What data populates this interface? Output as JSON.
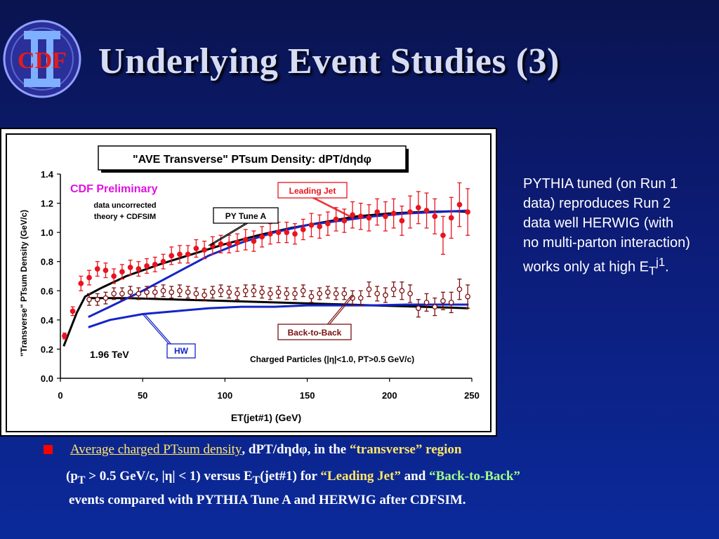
{
  "slide": {
    "title": "Underlying Event Studies (3)",
    "logo_text": "CDF",
    "side_note": {
      "text_main": "PYTHIA tuned (on Run 1 data) reproduces Run 2 data well HERWIG (with no multi-parton interaction) works only at high E",
      "sub": "T",
      "sup": "j1",
      "end": "."
    },
    "bullet": {
      "l1_underlined": "Average charged PTsum density",
      "l1_mid": ", dPT/dηdφ, in the ",
      "l1_yellow": "“transverse” region",
      "l2_a": "(p",
      "l2_sub": "T",
      "l2_b": " > 0.5 GeV/c, |η| < 1) versus E",
      "l2_sub2": "T",
      "l2_c": "(jet#1) for ",
      "l2_yellow": "“Leading Jet”",
      "l2_and": " and  ",
      "l2_green": "“Back-to-Back”",
      "l3": "events compared with PYTHIA Tune A and HERWIG after CDFSIM."
    },
    "colors": {
      "accent_red": "#ff0000",
      "yellow_text": "#ffe66a",
      "green_text": "#a4ff8a"
    }
  },
  "chart_data": {
    "type": "scatter",
    "title": "\"AVE Transverse\" PTsum Density: dPT/dηdφ",
    "xlabel": "ET(jet#1)   (GeV)",
    "ylabel": "\"Transverse\" PTsum Density (GeV/c)",
    "xlim": [
      0,
      250
    ],
    "ylim": [
      0,
      1.4
    ],
    "xticks": [
      "0",
      "50",
      "100",
      "150",
      "200",
      "250"
    ],
    "yticks": [
      "0.0",
      "0.2",
      "0.4",
      "0.6",
      "0.8",
      "1.0",
      "1.2",
      "1.4"
    ],
    "grid": false,
    "annotations": {
      "preliminary": "CDF Preliminary",
      "note1": "data uncorrected",
      "note2": "theory + CDFSIM",
      "energy": "1.96 TeV",
      "cuts": "Charged Particles (|η|<1.0, PT>0.5 GeV/c)",
      "label_leading": "Leading Jet",
      "label_pytune": "PY Tune A",
      "label_b2b": "Back-to-Back",
      "label_hw": "HW"
    },
    "series": [
      {
        "name": "Leading Jet",
        "marker": "filled-circle",
        "color": "#e8141e",
        "x": [
          2.5,
          7.5,
          12.5,
          17.5,
          22.5,
          27.5,
          32.5,
          37.5,
          42.5,
          47.5,
          52.5,
          57.5,
          62.5,
          67.5,
          72.5,
          77.5,
          82.5,
          87.5,
          92.5,
          97.5,
          102.5,
          107.5,
          112.5,
          117.5,
          122.5,
          127.5,
          132.5,
          137.5,
          142.5,
          147.5,
          152.5,
          157.5,
          162.5,
          167.5,
          172.5,
          177.5,
          182.5,
          187.5,
          192.5,
          197.5,
          202.5,
          207.5,
          212.5,
          217.5,
          222.5,
          227.5,
          232.5,
          237.5,
          242.5,
          247.5
        ],
        "y": [
          0.29,
          0.46,
          0.65,
          0.69,
          0.75,
          0.74,
          0.7,
          0.73,
          0.76,
          0.75,
          0.77,
          0.78,
          0.8,
          0.84,
          0.85,
          0.85,
          0.89,
          0.88,
          0.91,
          0.92,
          0.92,
          0.93,
          0.95,
          0.94,
          0.97,
          0.99,
          1.0,
          1.0,
          0.99,
          1.02,
          1.05,
          1.04,
          1.06,
          1.09,
          1.08,
          1.12,
          1.11,
          1.1,
          1.14,
          1.11,
          1.13,
          1.08,
          1.14,
          1.17,
          1.15,
          1.11,
          0.98,
          1.1,
          1.19,
          1.14
        ],
        "err": [
          0.02,
          0.03,
          0.05,
          0.05,
          0.05,
          0.05,
          0.05,
          0.05,
          0.05,
          0.05,
          0.05,
          0.05,
          0.05,
          0.06,
          0.06,
          0.06,
          0.06,
          0.06,
          0.06,
          0.06,
          0.06,
          0.06,
          0.07,
          0.07,
          0.07,
          0.07,
          0.07,
          0.07,
          0.07,
          0.07,
          0.08,
          0.08,
          0.08,
          0.08,
          0.08,
          0.09,
          0.09,
          0.09,
          0.09,
          0.1,
          0.1,
          0.1,
          0.11,
          0.11,
          0.12,
          0.12,
          0.13,
          0.14,
          0.15,
          0.16
        ]
      },
      {
        "name": "Back-to-Back",
        "marker": "open-circle",
        "color": "#7a1010",
        "x": [
          17.5,
          22.5,
          27.5,
          32.5,
          37.5,
          42.5,
          47.5,
          52.5,
          57.5,
          62.5,
          67.5,
          72.5,
          77.5,
          82.5,
          87.5,
          92.5,
          97.5,
          102.5,
          107.5,
          112.5,
          117.5,
          122.5,
          127.5,
          132.5,
          137.5,
          142.5,
          147.5,
          152.5,
          157.5,
          162.5,
          167.5,
          172.5,
          177.5,
          182.5,
          187.5,
          192.5,
          197.5,
          202.5,
          207.5,
          212.5,
          217.5,
          222.5,
          227.5,
          232.5,
          237.5,
          242.5,
          247.5
        ],
        "y": [
          0.54,
          0.54,
          0.55,
          0.58,
          0.58,
          0.59,
          0.58,
          0.59,
          0.59,
          0.6,
          0.59,
          0.6,
          0.59,
          0.58,
          0.57,
          0.59,
          0.6,
          0.59,
          0.58,
          0.6,
          0.6,
          0.59,
          0.58,
          0.59,
          0.58,
          0.58,
          0.6,
          0.56,
          0.58,
          0.59,
          0.58,
          0.58,
          0.55,
          0.55,
          0.61,
          0.58,
          0.57,
          0.61,
          0.6,
          0.58,
          0.48,
          0.52,
          0.49,
          0.53,
          0.52,
          0.61,
          0.56
        ],
        "err": [
          0.04,
          0.04,
          0.04,
          0.04,
          0.04,
          0.04,
          0.04,
          0.04,
          0.04,
          0.04,
          0.04,
          0.04,
          0.04,
          0.04,
          0.04,
          0.04,
          0.04,
          0.04,
          0.04,
          0.04,
          0.04,
          0.04,
          0.04,
          0.04,
          0.04,
          0.04,
          0.04,
          0.04,
          0.04,
          0.04,
          0.04,
          0.04,
          0.05,
          0.05,
          0.05,
          0.05,
          0.05,
          0.05,
          0.06,
          0.06,
          0.06,
          0.06,
          0.06,
          0.06,
          0.07,
          0.07,
          0.08
        ]
      },
      {
        "name": "PY Tune A (Leading Jet)",
        "style": "curve",
        "color": "#000000",
        "x": [
          2,
          10,
          15,
          25,
          40,
          60,
          80,
          100,
          120,
          140,
          160,
          180,
          200,
          220,
          240,
          248
        ],
        "y": [
          0.22,
          0.45,
          0.56,
          0.62,
          0.7,
          0.78,
          0.85,
          0.92,
          0.98,
          1.03,
          1.07,
          1.11,
          1.13,
          1.14,
          1.145,
          1.14
        ]
      },
      {
        "name": "PY Tune A (Back-to-Back)",
        "style": "curve",
        "color": "#000000",
        "x": [
          17,
          40,
          70,
          100,
          130,
          160,
          190,
          220,
          248
        ],
        "y": [
          0.55,
          0.55,
          0.54,
          0.53,
          0.52,
          0.51,
          0.5,
          0.49,
          0.48
        ]
      },
      {
        "name": "HW (Leading Jet)",
        "style": "curve",
        "color": "#1424c8",
        "x": [
          17,
          30,
          50,
          70,
          90,
          110,
          130,
          150,
          170,
          190,
          210,
          230,
          248
        ],
        "y": [
          0.42,
          0.49,
          0.6,
          0.72,
          0.84,
          0.93,
          1.0,
          1.05,
          1.08,
          1.11,
          1.13,
          1.14,
          1.15
        ]
      },
      {
        "name": "HW (Back-to-Back)",
        "style": "curve",
        "color": "#1424c8",
        "x": [
          17,
          30,
          50,
          70,
          90,
          110,
          130,
          150,
          170,
          190,
          210,
          230,
          248
        ],
        "y": [
          0.35,
          0.4,
          0.44,
          0.46,
          0.48,
          0.49,
          0.49,
          0.5,
          0.5,
          0.5,
          0.505,
          0.505,
          0.505
        ]
      }
    ]
  }
}
